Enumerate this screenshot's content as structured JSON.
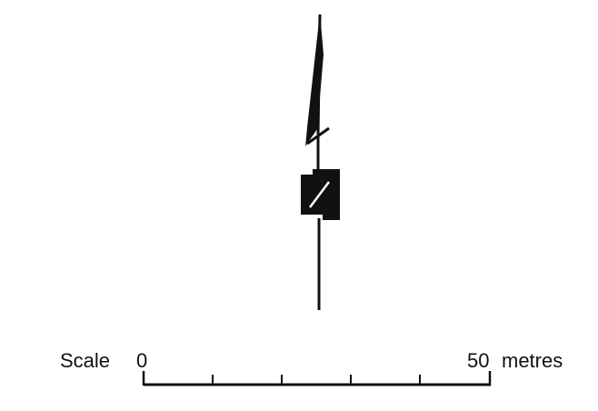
{
  "north_arrow": {
    "icon": "north-arrow-icon",
    "color": "#111111"
  },
  "scale_bar": {
    "label": "Scale",
    "start_value": "0",
    "end_value": "50",
    "unit": "metres",
    "color": "#111111"
  }
}
